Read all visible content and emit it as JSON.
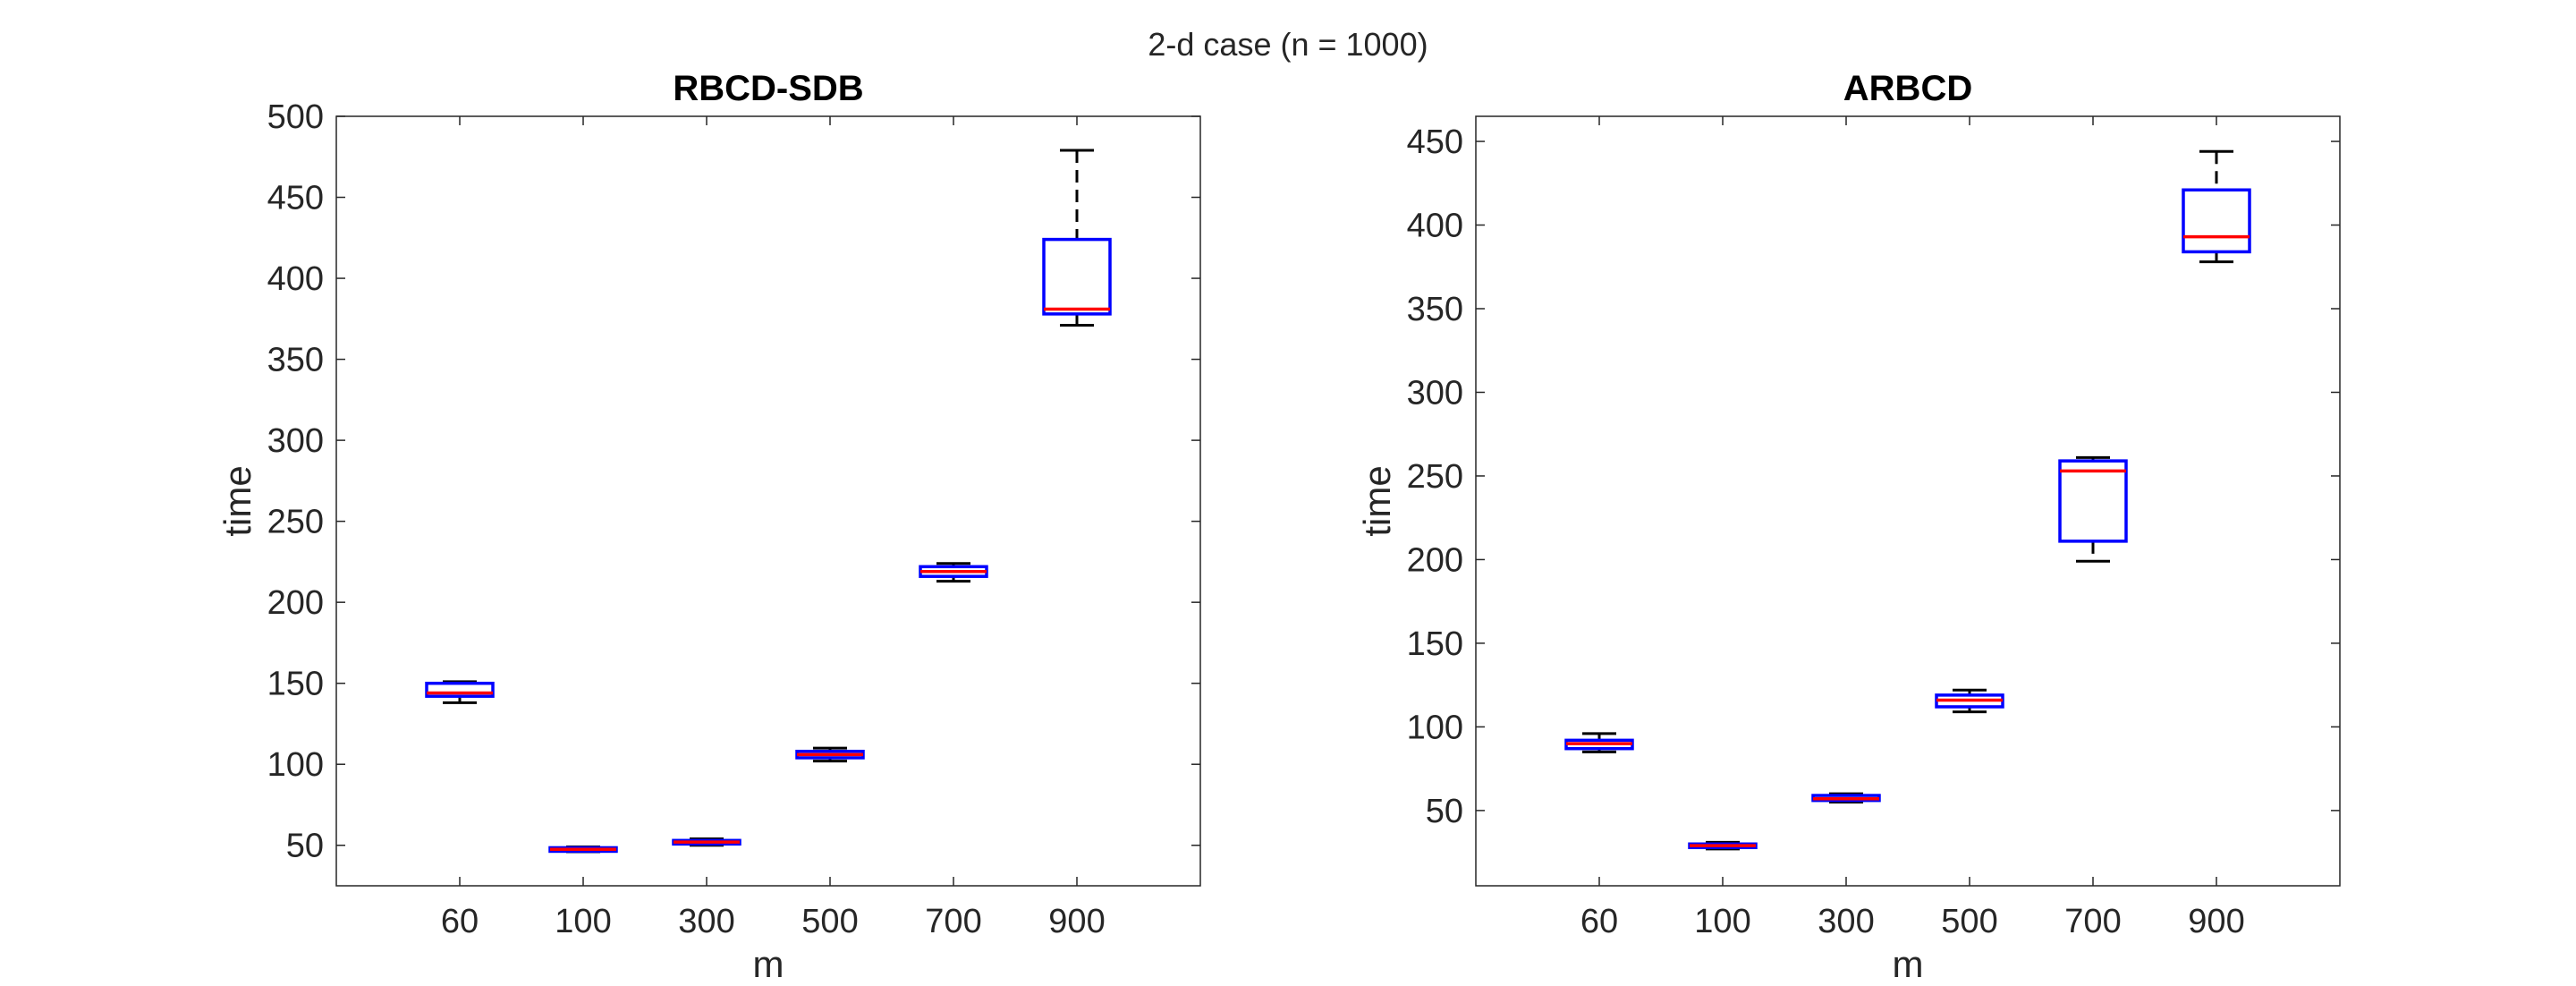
{
  "figure": {
    "suptitle": "2-d case (n = 1000)"
  },
  "chart_data": [
    {
      "type": "box",
      "title": "RBCD-SDB",
      "xlabel": "m",
      "ylabel": "time",
      "categories": [
        "60",
        "100",
        "300",
        "500",
        "700",
        "900"
      ],
      "ylim": [
        25,
        500
      ],
      "yticks": [
        50,
        100,
        150,
        200,
        250,
        300,
        350,
        400,
        450,
        500
      ],
      "boxes": [
        {
          "min": 138,
          "q1": 142,
          "median": 144,
          "q3": 150,
          "max": 151
        },
        {
          "min": 46,
          "q1": 47,
          "median": 47.5,
          "q3": 48.5,
          "max": 49
        },
        {
          "min": 50,
          "q1": 51,
          "median": 52,
          "q3": 53,
          "max": 54
        },
        {
          "min": 102,
          "q1": 104,
          "median": 106,
          "q3": 108,
          "max": 110
        },
        {
          "min": 213,
          "q1": 216,
          "median": 219,
          "q3": 222,
          "max": 224
        },
        {
          "min": 371,
          "q1": 378,
          "median": 381,
          "q3": 424,
          "max": 479
        }
      ]
    },
    {
      "type": "box",
      "title": "ARBCD",
      "xlabel": "m",
      "ylabel": "time",
      "categories": [
        "60",
        "100",
        "300",
        "500",
        "700",
        "900"
      ],
      "ylim": [
        5,
        465
      ],
      "yticks": [
        50,
        100,
        150,
        200,
        250,
        300,
        350,
        400,
        450
      ],
      "boxes": [
        {
          "min": 85,
          "q1": 87,
          "median": 90,
          "q3": 92,
          "max": 96
        },
        {
          "min": 27,
          "q1": 28,
          "median": 29,
          "q3": 30,
          "max": 31
        },
        {
          "min": 55,
          "q1": 56,
          "median": 57,
          "q3": 59,
          "max": 60
        },
        {
          "min": 109,
          "q1": 112,
          "median": 116,
          "q3": 119,
          "max": 122
        },
        {
          "min": 199,
          "q1": 211,
          "median": 253,
          "q3": 259,
          "max": 261
        },
        {
          "min": 378,
          "q1": 384,
          "median": 393,
          "q3": 421,
          "max": 444
        }
      ]
    }
  ],
  "colors": {
    "box": "#0000ff",
    "median": "#ff0000",
    "whisker": "#000000",
    "axis": "#262626"
  }
}
